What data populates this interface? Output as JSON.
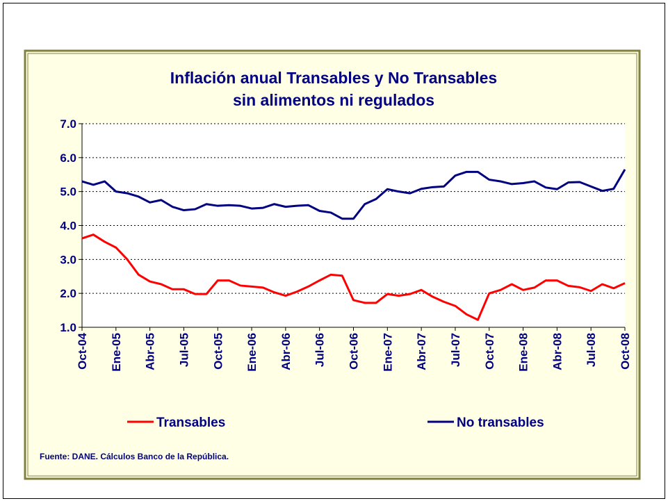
{
  "chart_data": {
    "type": "line",
    "title": [
      "Inflación anual Transables y No Transables",
      "sin alimentos ni regulados"
    ],
    "source": "Fuente: DANE. Cálculos Banco de la República.",
    "categories": [
      "Oct-04",
      null,
      null,
      "Ene-05",
      null,
      null,
      "Abr-05",
      null,
      null,
      "Jul-05",
      null,
      null,
      "Oct-05",
      null,
      null,
      "Ene-06",
      null,
      null,
      "Abr-06",
      null,
      null,
      "Jul-06",
      null,
      null,
      "Oct-06",
      null,
      null,
      "Ene-07",
      null,
      null,
      "Abr-07",
      null,
      null,
      "Jul-07",
      null,
      null,
      "Oct-07",
      null,
      null,
      "Ene-08",
      null,
      null,
      "Abr-08",
      null,
      null,
      "Jul-08",
      null,
      null,
      "Oct-08"
    ],
    "series": [
      {
        "name": "Transables",
        "color": "#ff0000",
        "values": [
          3.62,
          3.73,
          3.52,
          3.35,
          3.0,
          2.55,
          2.35,
          2.27,
          2.12,
          2.12,
          1.98,
          1.98,
          2.38,
          2.38,
          2.23,
          2.2,
          2.17,
          2.03,
          1.93,
          2.05,
          2.2,
          2.38,
          2.55,
          2.52,
          1.8,
          1.72,
          1.72,
          1.98,
          1.93,
          1.98,
          2.1,
          1.9,
          1.75,
          1.63,
          1.38,
          1.22,
          2.0,
          2.1,
          2.27,
          2.1,
          2.17,
          2.38,
          2.38,
          2.22,
          2.18,
          2.07,
          2.27,
          2.15,
          2.3
        ]
      },
      {
        "name": "No transables",
        "color": "#000080",
        "values": [
          5.3,
          5.2,
          5.3,
          5.0,
          4.95,
          4.85,
          4.68,
          4.75,
          4.55,
          4.45,
          4.48,
          4.63,
          4.58,
          4.6,
          4.58,
          4.5,
          4.52,
          4.63,
          4.55,
          4.58,
          4.6,
          4.43,
          4.38,
          4.2,
          4.2,
          4.63,
          4.78,
          5.07,
          5.0,
          4.95,
          5.08,
          5.13,
          5.15,
          5.47,
          5.58,
          5.58,
          5.35,
          5.3,
          5.22,
          5.25,
          5.3,
          5.12,
          5.07,
          5.27,
          5.28,
          5.15,
          5.02,
          5.08,
          5.65
        ]
      }
    ],
    "ylim": [
      1,
      7
    ],
    "yticks": [
      {
        "value": 1,
        "label": "1.0"
      },
      {
        "value": 2,
        "label": "2.0"
      },
      {
        "value": 3,
        "label": "3.0"
      },
      {
        "value": 4,
        "label": "4.0"
      },
      {
        "value": 5,
        "label": "5.0"
      },
      {
        "value": 6,
        "label": "6.0"
      },
      {
        "value": 7,
        "label": "7.0"
      }
    ],
    "grid": true,
    "legend": "bottom"
  }
}
